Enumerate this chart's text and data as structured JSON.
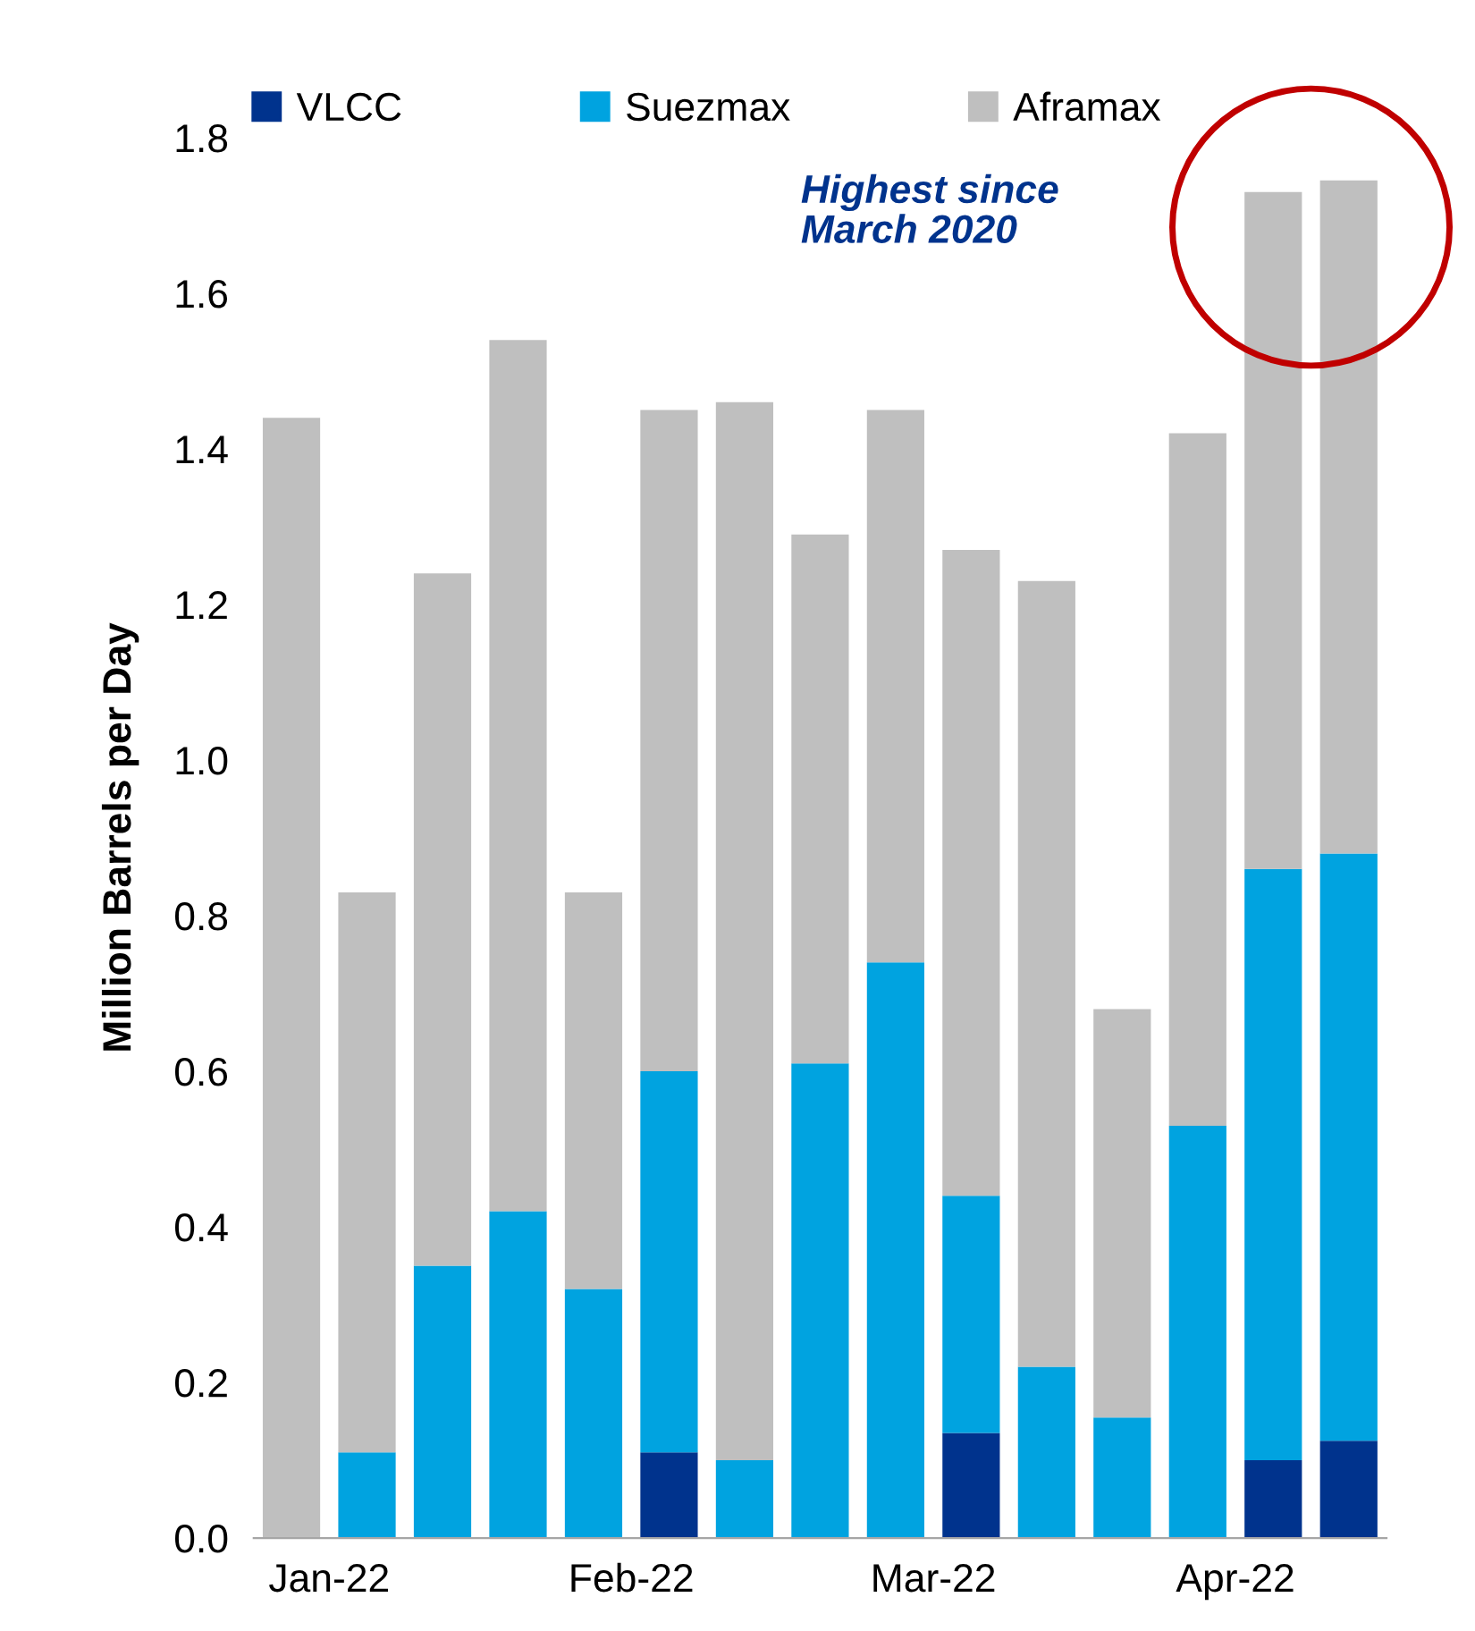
{
  "chart_data": {
    "type": "bar",
    "stacked": true,
    "ylabel": "Million Barrels per Day",
    "categories": [
      "Jan-22",
      null,
      null,
      null,
      "Feb-22",
      null,
      null,
      null,
      "Mar-22",
      null,
      null,
      null,
      "Apr-22",
      null,
      null
    ],
    "ylim": [
      0,
      1.8
    ],
    "yticks": [
      {
        "value": 0,
        "label": "0.0"
      },
      {
        "value": 0.2,
        "label": "0.2"
      },
      {
        "value": 0.4,
        "label": "0.4"
      },
      {
        "value": 0.6,
        "label": "0.6"
      },
      {
        "value": 0.8,
        "label": "0.8"
      },
      {
        "value": 1.0,
        "label": "1.0"
      },
      {
        "value": 1.2,
        "label": "1.2"
      },
      {
        "value": 1.4,
        "label": "1.4"
      },
      {
        "value": 1.6,
        "label": "1.6"
      },
      {
        "value": 1.8,
        "label": "1.8"
      }
    ],
    "series": [
      {
        "name": "VLCC",
        "color": "#00338d",
        "values": [
          0,
          0,
          0,
          0,
          0,
          0.11,
          0,
          0,
          0,
          0.135,
          0,
          0,
          0,
          0.1,
          0.125
        ]
      },
      {
        "name": "Suezmax",
        "color": "#00a3e0",
        "values": [
          0,
          0.11,
          0.35,
          0.42,
          0.32,
          0.49,
          0.1,
          0.61,
          0.74,
          0.305,
          0.22,
          0.155,
          0.53,
          0.76,
          0.755
        ]
      },
      {
        "name": "Aframax",
        "color": "#bfbfbf",
        "values": [
          1.44,
          0.72,
          0.89,
          1.12,
          0.51,
          0.85,
          1.36,
          0.68,
          0.71,
          0.83,
          1.01,
          0.525,
          0.89,
          0.87,
          0.865
        ]
      }
    ],
    "annotations": [
      "Highest since\nMarch 2020"
    ],
    "legend": "top",
    "grid": false
  }
}
